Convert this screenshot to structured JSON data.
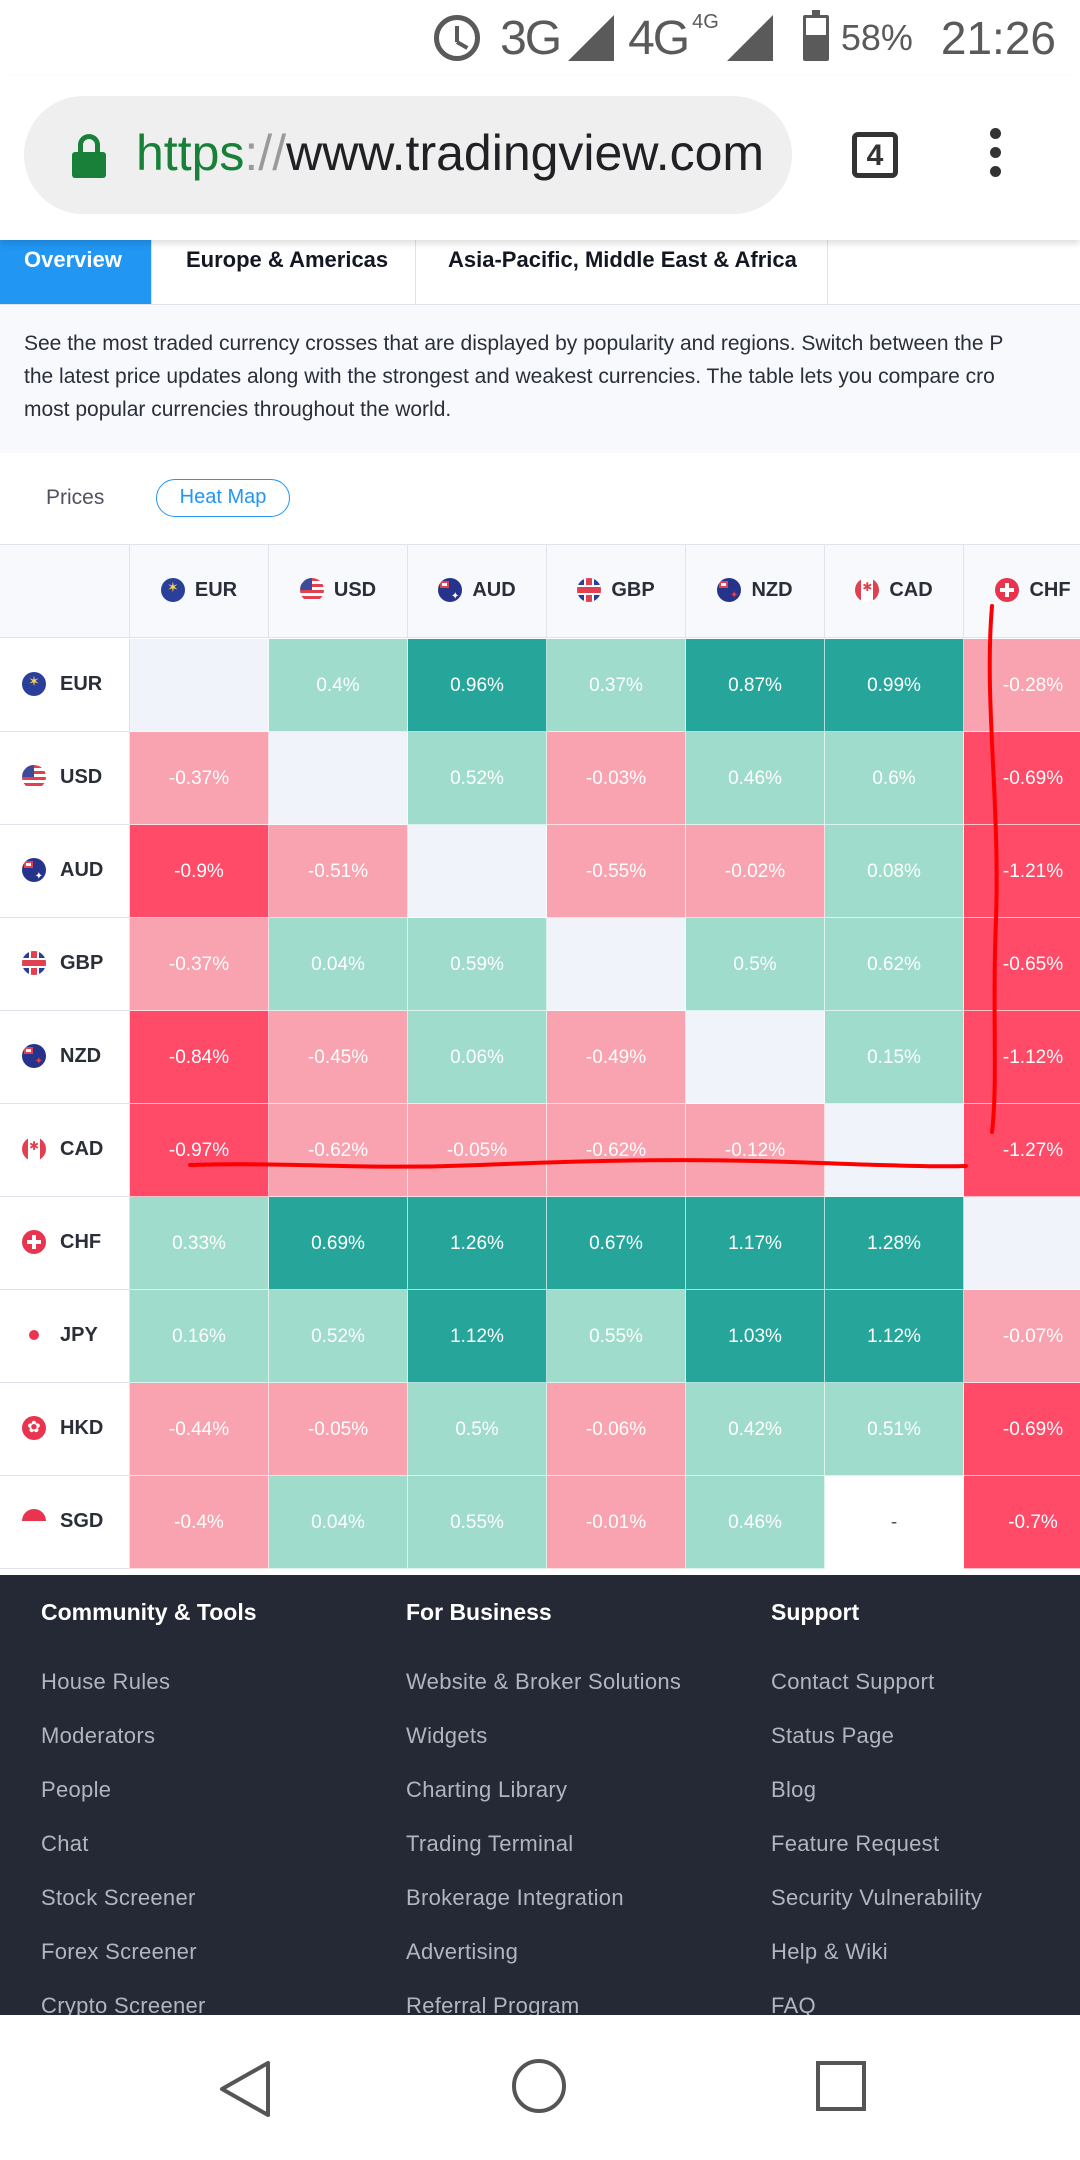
{
  "status_bar": {
    "network_3g": "3G",
    "network_4g": "4G",
    "network_4g_sup": "4G",
    "battery": "58%",
    "time": "21:26",
    "icons": [
      "alarm-icon",
      "signal-icon",
      "battery-icon"
    ]
  },
  "browser": {
    "url_scheme": "https",
    "url_sep": "://",
    "url_host": "www.tradingview.com",
    "tab_count": "4",
    "icons": [
      "lock-icon",
      "tabs-icon",
      "menu-dots-icon"
    ]
  },
  "region_tabs": {
    "overview": "Overview",
    "europe": "Europe & Americas",
    "asia": "Asia-Pacific, Middle East & Africa"
  },
  "description": {
    "line1": "See the most traded currency crosses that are displayed by popularity and regions. Switch between the P",
    "line2": "the latest price updates along with the strongest and weakest currencies. The table lets you compare cro",
    "line3": "most popular currencies throughout the world."
  },
  "view_switch": {
    "prices": "Prices",
    "heat_map": "Heat Map"
  },
  "colors": {
    "strong_green": "#26a69a",
    "light_green": "#9fdccb",
    "light_red": "#f9a3b1",
    "strong_red": "#ff4a68",
    "accent_blue": "#2196f3",
    "annotation_red": "#ff0000"
  },
  "heatmap": {
    "columns": [
      "EUR",
      "USD",
      "AUD",
      "GBP",
      "NZD",
      "CAD",
      "CHF"
    ],
    "rows": [
      {
        "currency": "EUR",
        "values": [
          "",
          "0.4%",
          "0.96%",
          "0.37%",
          "0.87%",
          "0.99%",
          "-0.28%"
        ],
        "tones": [
          "em",
          "lg",
          "sg",
          "lg",
          "sg",
          "sg",
          "lr"
        ]
      },
      {
        "currency": "USD",
        "values": [
          "-0.37%",
          "",
          "0.52%",
          "-0.03%",
          "0.46%",
          "0.6%",
          "-0.69%"
        ],
        "tones": [
          "lr",
          "em",
          "lg",
          "lr",
          "lg",
          "lg",
          "sr"
        ]
      },
      {
        "currency": "AUD",
        "values": [
          "-0.9%",
          "-0.51%",
          "",
          "-0.55%",
          "-0.02%",
          "0.08%",
          "-1.21%"
        ],
        "tones": [
          "sr",
          "lr",
          "em",
          "lr",
          "lr",
          "lg",
          "sr"
        ]
      },
      {
        "currency": "GBP",
        "values": [
          "-0.37%",
          "0.04%",
          "0.59%",
          "",
          "0.5%",
          "0.62%",
          "-0.65%"
        ],
        "tones": [
          "lr",
          "lg",
          "lg",
          "em",
          "lg",
          "lg",
          "sr"
        ]
      },
      {
        "currency": "NZD",
        "values": [
          "-0.84%",
          "-0.45%",
          "0.06%",
          "-0.49%",
          "",
          "0.15%",
          "-1.12%"
        ],
        "tones": [
          "sr",
          "lr",
          "lg",
          "lr",
          "em",
          "lg",
          "sr"
        ]
      },
      {
        "currency": "CAD",
        "values": [
          "-0.97%",
          "-0.62%",
          "-0.05%",
          "-0.62%",
          "-0.12%",
          "",
          "-1.27%"
        ],
        "tones": [
          "sr",
          "lr",
          "lr",
          "lr",
          "lr",
          "em",
          "sr"
        ]
      },
      {
        "currency": "CHF",
        "values": [
          "0.33%",
          "0.69%",
          "1.26%",
          "0.67%",
          "1.17%",
          "1.28%",
          ""
        ],
        "tones": [
          "lg",
          "sg",
          "sg",
          "sg",
          "sg",
          "sg",
          "em"
        ]
      },
      {
        "currency": "JPY",
        "values": [
          "0.16%",
          "0.52%",
          "1.12%",
          "0.55%",
          "1.03%",
          "1.12%",
          "-0.07%"
        ],
        "tones": [
          "lg",
          "lg",
          "sg",
          "lg",
          "sg",
          "sg",
          "lr"
        ]
      },
      {
        "currency": "HKD",
        "values": [
          "-0.44%",
          "-0.05%",
          "0.5%",
          "-0.06%",
          "0.42%",
          "0.51%",
          "-0.69%"
        ],
        "tones": [
          "lr",
          "lr",
          "lg",
          "lr",
          "lg",
          "lg",
          "sr"
        ]
      },
      {
        "currency": "SGD",
        "values": [
          "-0.4%",
          "0.04%",
          "0.55%",
          "-0.01%",
          "0.46%",
          "-",
          "-0.7%"
        ],
        "tones": [
          "lr",
          "lg",
          "lg",
          "lr",
          "lg",
          "wh",
          "sr"
        ]
      }
    ]
  },
  "footer": {
    "columns": [
      {
        "title": "Community & Tools",
        "links": [
          "House Rules",
          "Moderators",
          "People",
          "Chat",
          "Stock Screener",
          "Forex Screener",
          "Crypto Screener"
        ]
      },
      {
        "title": "For Business",
        "links": [
          "Website & Broker Solutions",
          "Widgets",
          "Charting Library",
          "Trading Terminal",
          "Brokerage Integration",
          "Advertising",
          "Referral Program"
        ]
      },
      {
        "title": "Support",
        "links": [
          "Contact Support",
          "Status Page",
          "Blog",
          "Feature Request",
          "Security Vulnerability",
          "Help & Wiki",
          "FAQ"
        ]
      }
    ]
  },
  "nav_bar": {
    "icons": [
      "back-icon",
      "home-icon",
      "recents-icon"
    ]
  }
}
